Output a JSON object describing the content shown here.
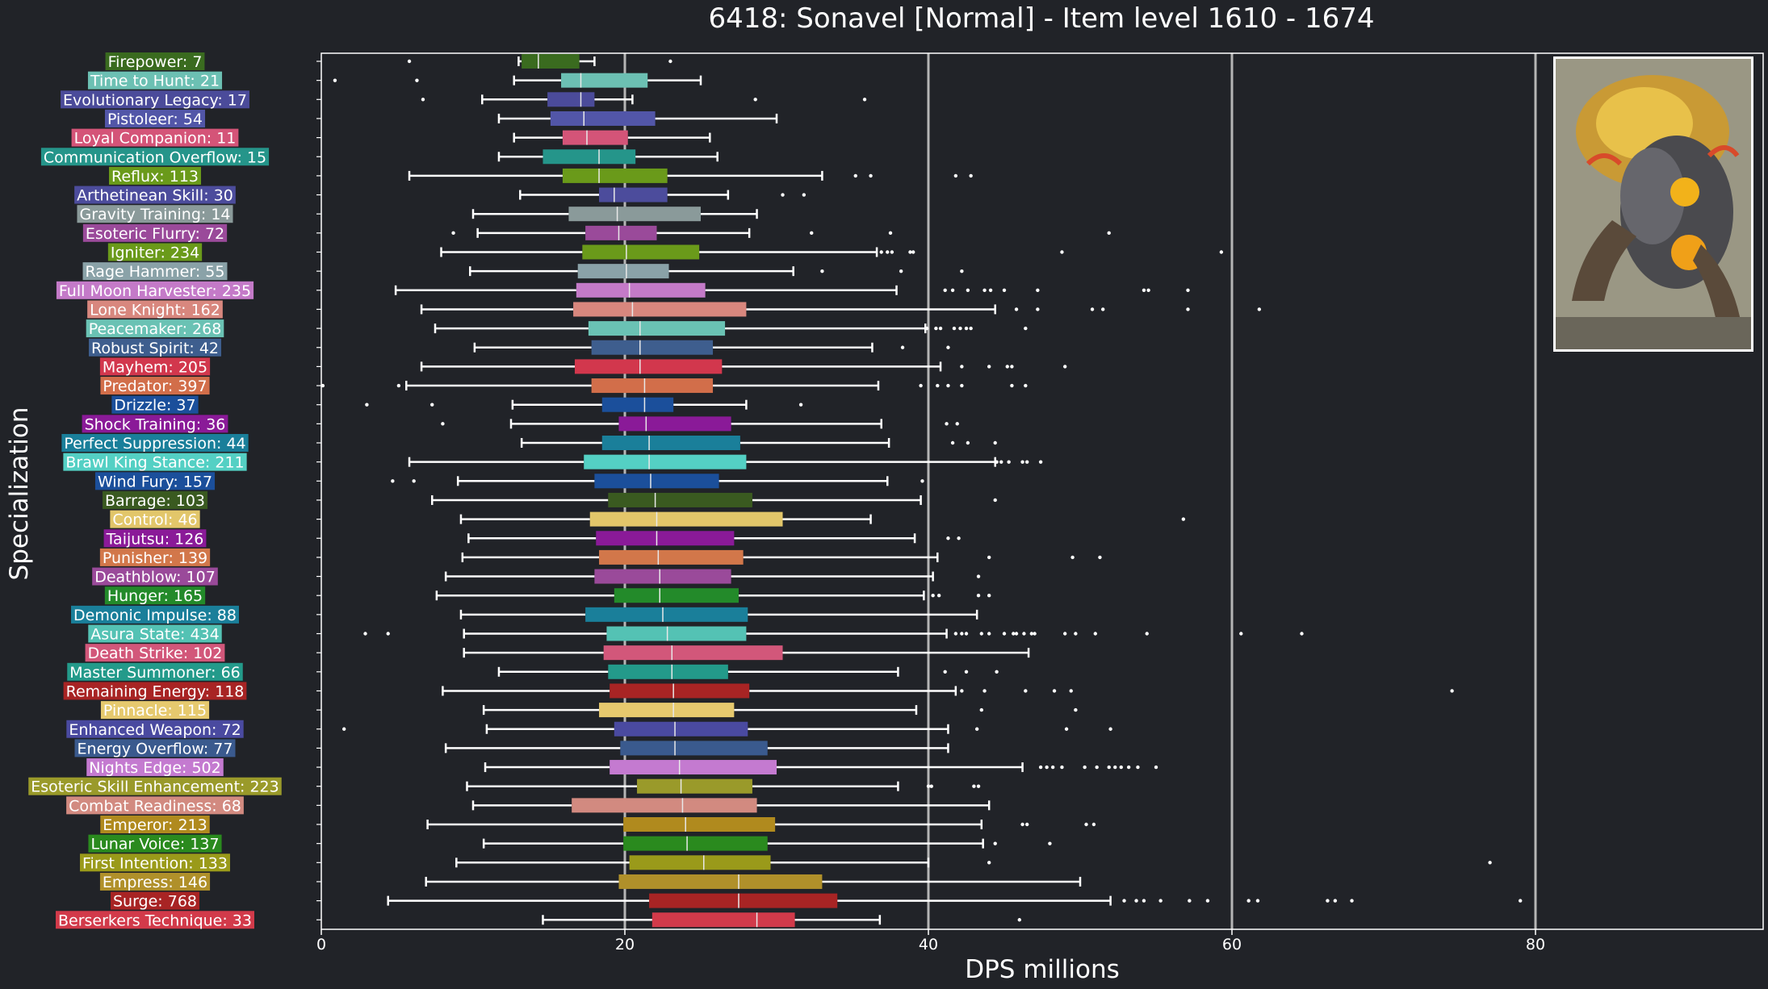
{
  "chart_data": {
    "type": "box",
    "title": "6418: Sonavel [Normal] - Item level 1610 - 1674",
    "xlabel": "DPS millions",
    "ylabel": "Specialization",
    "xlim": [
      0,
      95
    ],
    "xticks": [
      0,
      20,
      40,
      60,
      80
    ],
    "grid_lines": [
      20,
      40,
      60,
      80
    ],
    "legend": "none",
    "categories": [
      {
        "label": "Firepower: 7",
        "color": "#3a6b1f",
        "whislo": 13.0,
        "q1": 13.2,
        "med": 14.3,
        "q3": 17.0,
        "whishi": 18.0,
        "fliers": [
          5.8,
          23.0
        ]
      },
      {
        "label": "Time to Hunt: 21",
        "color": "#6cc0b3",
        "whislo": 12.7,
        "q1": 15.8,
        "med": 17.1,
        "q3": 21.5,
        "whishi": 25.0,
        "fliers": [
          0.9,
          6.3
        ]
      },
      {
        "label": "Evolutionary Legacy: 17",
        "color": "#4b4b9a",
        "whislo": 10.6,
        "q1": 14.9,
        "med": 17.1,
        "q3": 18.0,
        "whishi": 20.5,
        "fliers": [
          6.7,
          28.6,
          35.8
        ]
      },
      {
        "label": "Pistoleer: 54",
        "color": "#5256a8",
        "whislo": 11.7,
        "q1": 15.1,
        "med": 17.3,
        "q3": 22.0,
        "whishi": 30.0,
        "fliers": []
      },
      {
        "label": "Loyal Companion: 11",
        "color": "#d45478",
        "whislo": 12.7,
        "q1": 15.9,
        "med": 17.5,
        "q3": 20.2,
        "whishi": 25.6,
        "fliers": []
      },
      {
        "label": "Communication Overflow: 15",
        "color": "#25958a",
        "whislo": 11.7,
        "q1": 14.6,
        "med": 18.3,
        "q3": 20.7,
        "whishi": 26.1,
        "fliers": []
      },
      {
        "label": "Reflux: 113",
        "color": "#6a9a1a",
        "whislo": 5.8,
        "q1": 15.9,
        "med": 18.3,
        "q3": 22.8,
        "whishi": 33.0,
        "fliers": [
          35.2,
          36.2,
          41.8,
          42.8
        ]
      },
      {
        "label": "Arthetinean Skill: 30",
        "color": "#4c4c9c",
        "whislo": 13.1,
        "q1": 18.3,
        "med": 19.3,
        "q3": 22.8,
        "whishi": 26.8,
        "fliers": [
          30.4,
          31.8
        ]
      },
      {
        "label": "Gravity Training: 14",
        "color": "#8a9a9a",
        "whislo": 10.0,
        "q1": 16.3,
        "med": 19.5,
        "q3": 25.0,
        "whishi": 28.7,
        "fliers": []
      },
      {
        "label": "Esoteric Flurry: 72",
        "color": "#9a4a9a",
        "whislo": 10.3,
        "q1": 17.4,
        "med": 19.6,
        "q3": 22.1,
        "whishi": 28.2,
        "fliers": [
          8.7,
          32.3,
          37.5,
          51.9
        ]
      },
      {
        "label": "Igniter: 234",
        "color": "#6a9a1a",
        "whislo": 7.9,
        "q1": 17.2,
        "med": 20.1,
        "q3": 24.9,
        "whishi": 36.6,
        "fliers": [
          36.9,
          37.3,
          37.6,
          38.8,
          39.0,
          48.8,
          59.3
        ]
      },
      {
        "label": "Rage Hammer: 55",
        "color": "#8aa2a8",
        "whislo": 9.8,
        "q1": 16.9,
        "med": 20.1,
        "q3": 22.9,
        "whishi": 31.1,
        "fliers": [
          33.0,
          38.2,
          42.2
        ]
      },
      {
        "label": "Full Moon Harvester: 235",
        "color": "#c47ac8",
        "whislo": 4.9,
        "q1": 16.8,
        "med": 20.3,
        "q3": 25.3,
        "whishi": 37.9,
        "fliers": [
          41.1,
          41.6,
          42.6,
          43.7,
          44.1,
          45.0,
          47.2,
          54.2,
          54.5,
          57.1
        ]
      },
      {
        "label": "Lone Knight: 162",
        "color": "#d8877e",
        "whislo": 6.6,
        "q1": 16.6,
        "med": 20.5,
        "q3": 28.0,
        "whishi": 44.4,
        "fliers": [
          45.8,
          47.2,
          50.8,
          51.5,
          57.1,
          61.8
        ]
      },
      {
        "label": "Peacemaker: 268",
        "color": "#6ac2b4",
        "whislo": 7.5,
        "q1": 17.6,
        "med": 21.0,
        "q3": 26.6,
        "whishi": 39.8,
        "fliers": [
          39.9,
          40.5,
          40.8,
          41.7,
          42.1,
          42.5,
          42.8,
          46.4
        ]
      },
      {
        "label": "Robust Spirit: 42",
        "color": "#3e5e8e",
        "whislo": 10.1,
        "q1": 17.8,
        "med": 21.0,
        "q3": 25.8,
        "whishi": 36.3,
        "fliers": [
          38.3,
          41.3
        ]
      },
      {
        "label": "Mayhem: 205",
        "color": "#d2374d",
        "whislo": 6.6,
        "q1": 16.7,
        "med": 21.0,
        "q3": 26.4,
        "whishi": 40.8,
        "fliers": [
          42.2,
          44.0,
          45.2,
          45.5,
          49.0
        ]
      },
      {
        "label": "Predator: 397",
        "color": "#d26e4a",
        "whislo": 5.6,
        "q1": 17.8,
        "med": 21.3,
        "q3": 25.8,
        "whishi": 36.7,
        "fliers": [
          0.1,
          5.1,
          39.5,
          40.6,
          41.3,
          42.2,
          45.5,
          46.4
        ]
      },
      {
        "label": "Drizzle: 37",
        "color": "#1b4f9b",
        "whislo": 12.6,
        "q1": 18.5,
        "med": 21.3,
        "q3": 23.2,
        "whishi": 28.0,
        "fliers": [
          3.0,
          7.3,
          31.6
        ]
      },
      {
        "label": "Shock Training: 36",
        "color": "#8a1a98",
        "whislo": 12.5,
        "q1": 19.6,
        "med": 21.4,
        "q3": 27.0,
        "whishi": 36.9,
        "fliers": [
          8.0,
          41.2,
          41.9
        ]
      },
      {
        "label": "Perfect Suppression: 44",
        "color": "#1a7f9a",
        "whislo": 13.2,
        "q1": 18.5,
        "med": 21.6,
        "q3": 27.6,
        "whishi": 37.4,
        "fliers": [
          41.6,
          42.6,
          44.4
        ]
      },
      {
        "label": "Brawl King Stance: 211",
        "color": "#54d0c4",
        "whislo": 5.8,
        "q1": 17.3,
        "med": 21.6,
        "q3": 28.0,
        "whishi": 44.4,
        "fliers": [
          44.5,
          44.8,
          45.3,
          46.2,
          46.5,
          47.4
        ]
      },
      {
        "label": "Wind Fury: 157",
        "color": "#1b4f9b",
        "whislo": 9.0,
        "q1": 18.0,
        "med": 21.7,
        "q3": 26.2,
        "whishi": 37.3,
        "fliers": [
          4.7,
          6.1,
          39.6
        ]
      },
      {
        "label": "Barrage: 103",
        "color": "#3a5a20",
        "whislo": 7.3,
        "q1": 18.9,
        "med": 22.0,
        "q3": 28.4,
        "whishi": 39.5,
        "fliers": [
          44.4
        ]
      },
      {
        "label": "Control: 46",
        "color": "#e2c66a",
        "whislo": 9.2,
        "q1": 17.7,
        "med": 22.1,
        "q3": 30.4,
        "whishi": 36.2,
        "fliers": [
          56.8
        ]
      },
      {
        "label": "Taijutsu: 126",
        "color": "#8a1a98",
        "whislo": 9.7,
        "q1": 18.1,
        "med": 22.1,
        "q3": 27.2,
        "whishi": 39.1,
        "fliers": [
          41.3,
          42.0
        ]
      },
      {
        "label": "Punisher: 139",
        "color": "#d2774a",
        "whislo": 9.3,
        "q1": 18.3,
        "med": 22.2,
        "q3": 27.8,
        "whishi": 40.6,
        "fliers": [
          44.0,
          49.5,
          51.3
        ]
      },
      {
        "label": "Deathblow: 107",
        "color": "#9a4a9a",
        "whislo": 8.2,
        "q1": 18.0,
        "med": 22.3,
        "q3": 27.0,
        "whishi": 40.3,
        "fliers": [
          43.3
        ]
      },
      {
        "label": "Hunger: 165",
        "color": "#238a2a",
        "whislo": 7.6,
        "q1": 19.3,
        "med": 22.3,
        "q3": 27.5,
        "whishi": 39.7,
        "fliers": [
          40.3,
          40.7,
          43.3,
          44.0
        ]
      },
      {
        "label": "Demonic Impulse: 88",
        "color": "#1a7f9a",
        "whislo": 9.2,
        "q1": 17.4,
        "med": 22.5,
        "q3": 28.1,
        "whishi": 43.2,
        "fliers": []
      },
      {
        "label": "Asura State: 434",
        "color": "#54c2b4",
        "whislo": 9.4,
        "q1": 18.8,
        "med": 22.8,
        "q3": 28.0,
        "whishi": 41.2,
        "fliers": [
          2.9,
          4.4,
          41.8,
          42.2,
          42.5,
          43.5,
          44.0,
          45.0,
          45.6,
          45.8,
          46.3,
          46.8,
          47.0,
          49.0,
          49.7,
          51.0,
          54.4,
          60.6,
          64.6
        ]
      },
      {
        "label": "Death Strike: 102",
        "color": "#d2577a",
        "whislo": 9.4,
        "q1": 18.6,
        "med": 23.1,
        "q3": 30.4,
        "whishi": 46.6,
        "fliers": []
      },
      {
        "label": "Master Summoner: 66",
        "color": "#239a8a",
        "whislo": 11.7,
        "q1": 18.9,
        "med": 23.1,
        "q3": 26.8,
        "whishi": 38.0,
        "fliers": [
          41.1,
          42.5,
          44.5
        ]
      },
      {
        "label": "Remaining Energy: 118",
        "color": "#a82424",
        "whislo": 8.0,
        "q1": 19.0,
        "med": 23.2,
        "q3": 28.2,
        "whishi": 41.8,
        "fliers": [
          42.2,
          43.7,
          46.4,
          48.3,
          49.4,
          74.5
        ]
      },
      {
        "label": "Pinnacle: 115",
        "color": "#e6c96e",
        "whislo": 10.7,
        "q1": 18.3,
        "med": 23.2,
        "q3": 27.2,
        "whishi": 39.2,
        "fliers": [
          43.5,
          49.7
        ]
      },
      {
        "label": "Enhanced Weapon: 72",
        "color": "#4a4aa0",
        "whislo": 10.9,
        "q1": 19.3,
        "med": 23.3,
        "q3": 28.1,
        "whishi": 41.3,
        "fliers": [
          1.5,
          43.2,
          49.1,
          52.0
        ]
      },
      {
        "label": "Energy Overflow: 77",
        "color": "#3a5a8e",
        "whislo": 8.2,
        "q1": 19.7,
        "med": 23.3,
        "q3": 29.4,
        "whishi": 41.3,
        "fliers": []
      },
      {
        "label": "Nights Edge: 502",
        "color": "#c47ad0",
        "whislo": 10.8,
        "q1": 19.0,
        "med": 23.6,
        "q3": 30.0,
        "whishi": 46.2,
        "fliers": [
          47.4,
          47.8,
          48.2,
          48.8,
          50.3,
          51.1,
          51.9,
          52.3,
          52.7,
          53.2,
          53.8,
          55.0
        ]
      },
      {
        "label": "Esoteric Skill Enhancement: 223",
        "color": "#9a9a2a",
        "whislo": 9.6,
        "q1": 20.8,
        "med": 23.7,
        "q3": 28.4,
        "whishi": 38.0,
        "fliers": [
          40.0,
          40.2,
          43.0,
          43.3
        ]
      },
      {
        "label": "Combat Readiness: 68",
        "color": "#d28a80",
        "whislo": 10.0,
        "q1": 16.5,
        "med": 23.8,
        "q3": 28.7,
        "whishi": 44.0,
        "fliers": []
      },
      {
        "label": "Emperor: 213",
        "color": "#b08a1e",
        "whislo": 7.0,
        "q1": 19.9,
        "med": 24.0,
        "q3": 29.9,
        "whishi": 43.5,
        "fliers": [
          46.2,
          46.5,
          50.4,
          50.9
        ]
      },
      {
        "label": "Lunar Voice: 137",
        "color": "#2a8a1e",
        "whislo": 10.7,
        "q1": 19.9,
        "med": 24.1,
        "q3": 29.4,
        "whishi": 43.6,
        "fliers": [
          44.4,
          48.0
        ]
      },
      {
        "label": "First Intention: 133",
        "color": "#9a9a1a",
        "whislo": 8.9,
        "q1": 20.3,
        "med": 25.2,
        "q3": 29.6,
        "whishi": 40.0,
        "fliers": [
          44.0,
          77.0
        ]
      },
      {
        "label": "Empress: 146",
        "color": "#b0902a",
        "whislo": 6.9,
        "q1": 19.6,
        "med": 27.5,
        "q3": 33.0,
        "whishi": 50.0,
        "fliers": []
      },
      {
        "label": "Surge: 768",
        "color": "#a82424",
        "whislo": 4.4,
        "q1": 21.6,
        "med": 27.5,
        "q3": 34.0,
        "whishi": 52.0,
        "fliers": [
          52.9,
          53.7,
          54.2,
          55.3,
          57.2,
          58.4,
          61.1,
          61.7,
          66.3,
          66.8,
          67.9,
          79.0
        ]
      },
      {
        "label": "Berserkers Technique: 33",
        "color": "#d23a4a",
        "whislo": 14.6,
        "q1": 21.8,
        "med": 28.7,
        "q3": 31.2,
        "whishi": 36.8,
        "fliers": [
          46.0
        ]
      }
    ]
  }
}
